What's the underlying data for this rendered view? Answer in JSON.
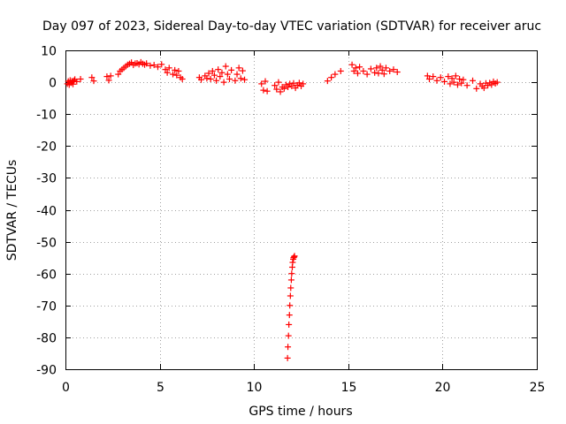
{
  "chart_data": {
    "type": "scatter",
    "title": "Day 097 of 2023, Sidereal Day-to-day VTEC variation (SDTVAR) for receiver aruc",
    "xlabel": "GPS time / hours",
    "ylabel": "SDTVAR / TECUs",
    "xlim": [
      0,
      25
    ],
    "ylim": [
      -90,
      10
    ],
    "xticks": [
      0,
      5,
      10,
      15,
      20,
      25
    ],
    "yticks": [
      10,
      0,
      -10,
      -20,
      -30,
      -40,
      -50,
      -60,
      -70,
      -80,
      -90
    ],
    "grid": true,
    "marker": "plus",
    "color": "#ff0000",
    "series": [
      {
        "name": "SDTVAR",
        "x": [
          0.1,
          0.15,
          0.2,
          0.25,
          0.3,
          0.35,
          0.4,
          0.45,
          0.5,
          0.6,
          0.8,
          1.4,
          1.5,
          2.2,
          2.3,
          2.4,
          2.8,
          2.9,
          3.0,
          3.1,
          3.2,
          3.3,
          3.4,
          3.5,
          3.6,
          3.7,
          3.8,
          3.9,
          4.0,
          4.1,
          4.2,
          4.3,
          4.5,
          4.7,
          4.9,
          5.1,
          5.3,
          5.4,
          5.5,
          5.7,
          5.8,
          5.9,
          6.0,
          6.1,
          6.2,
          7.1,
          7.2,
          7.4,
          7.5,
          7.6,
          7.7,
          7.8,
          7.9,
          8.0,
          8.1,
          8.2,
          8.3,
          8.4,
          8.5,
          8.6,
          8.7,
          8.8,
          9.0,
          9.1,
          9.2,
          9.3,
          9.4,
          9.5,
          10.4,
          10.5,
          10.6,
          10.7,
          11.1,
          11.2,
          11.3,
          11.4,
          11.5,
          11.6,
          11.7,
          11.8,
          11.9,
          12.0,
          12.1,
          12.2,
          12.3,
          12.4,
          12.5,
          12.6,
          13.9,
          14.1,
          14.3,
          14.6,
          15.2,
          15.3,
          15.4,
          15.5,
          15.6,
          15.8,
          16.0,
          16.2,
          16.4,
          16.5,
          16.6,
          16.7,
          16.8,
          16.9,
          17.0,
          17.2,
          17.4,
          17.6,
          19.2,
          19.3,
          19.5,
          19.7,
          19.9,
          20.1,
          20.3,
          20.4,
          20.5,
          20.6,
          20.7,
          20.8,
          20.9,
          21.0,
          21.1,
          21.3,
          21.6,
          21.8,
          22.0,
          22.1,
          22.2,
          22.3,
          22.4,
          22.5,
          22.6,
          22.7,
          22.8,
          22.9,
          11.78,
          11.8,
          11.83,
          11.85,
          11.88,
          11.9,
          11.93,
          11.95,
          11.98,
          12.0,
          12.03,
          12.05,
          12.08,
          12.1,
          12.13,
          12.15
        ],
        "y": [
          -0.5,
          0.3,
          -0.8,
          0.6,
          -0.2,
          0.4,
          -0.6,
          0.5,
          0.9,
          0.2,
          1.0,
          1.5,
          0.4,
          1.8,
          0.6,
          2.0,
          2.5,
          3.5,
          4.0,
          4.5,
          5.0,
          5.5,
          5.8,
          6.2,
          5.4,
          5.9,
          6.0,
          5.6,
          6.3,
          5.8,
          5.5,
          5.9,
          5.2,
          5.4,
          4.8,
          5.6,
          4.0,
          3.0,
          4.5,
          2.5,
          3.8,
          2.2,
          3.5,
          1.5,
          1.0,
          1.5,
          0.8,
          2.0,
          1.2,
          2.8,
          1.0,
          3.5,
          2.2,
          0.5,
          4.0,
          1.8,
          3.0,
          0.0,
          5.0,
          2.5,
          1.0,
          3.8,
          0.5,
          2.5,
          4.5,
          1.2,
          3.6,
          0.8,
          -0.5,
          -2.5,
          0.3,
          -2.8,
          -1.0,
          -2.2,
          0.0,
          -3.0,
          -1.5,
          -2.0,
          -0.8,
          -1.5,
          -0.5,
          -1.2,
          -0.3,
          -1.8,
          -0.9,
          -0.2,
          -1.2,
          -0.5,
          0.4,
          1.5,
          2.5,
          3.5,
          5.5,
          3.5,
          4.5,
          2.8,
          4.8,
          3.5,
          2.5,
          4.2,
          3.0,
          4.5,
          2.8,
          5.0,
          3.8,
          2.6,
          4.5,
          3.5,
          4.0,
          3.2,
          2.0,
          1.0,
          1.8,
          0.5,
          1.5,
          0.2,
          1.8,
          -0.5,
          1.2,
          0.0,
          2.0,
          -0.8,
          1.0,
          -0.3,
          0.8,
          -1.0,
          0.5,
          -2.0,
          -0.5,
          -1.2,
          -1.8,
          -0.3,
          -1.0,
          -0.2,
          -0.8,
          0.2,
          -0.4,
          0.0,
          -86.5,
          -83.0,
          -79.5,
          -76.0,
          -73.0,
          -70.0,
          -67.0,
          -64.5,
          -62.0,
          -60.0,
          -58.0,
          -56.5,
          -55.5,
          -55.0,
          -54.8,
          -54.5
        ]
      }
    ]
  }
}
